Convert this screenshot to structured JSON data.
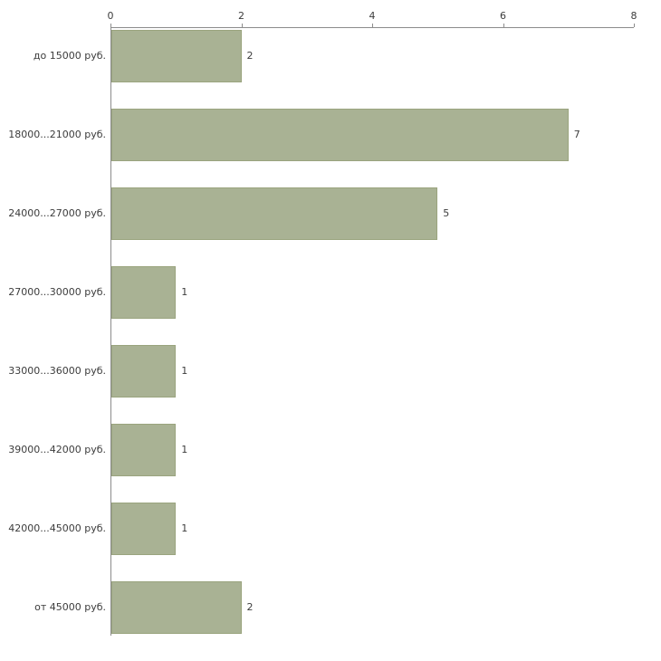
{
  "chart_data": {
    "type": "bar",
    "orientation": "horizontal",
    "title": "",
    "xlabel": "",
    "ylabel": "",
    "categories": [
      "до 15000 руб.",
      "18000...21000 руб.",
      "24000...27000 руб.",
      "27000...30000 руб.",
      "33000...36000 руб.",
      "39000...42000 руб.",
      "42000...45000 руб.",
      "от 45000 руб."
    ],
    "values": [
      2,
      7,
      5,
      1,
      1,
      1,
      1,
      2
    ],
    "xlim": [
      0,
      8
    ],
    "xticks": [
      0,
      2,
      4,
      6,
      8
    ],
    "grid": false,
    "legend": false,
    "bar_color": "#a9b294",
    "bar_border_color": "#9aa47e",
    "axis_color": "#8c8c8c",
    "text_color": "#3c3c3c"
  }
}
